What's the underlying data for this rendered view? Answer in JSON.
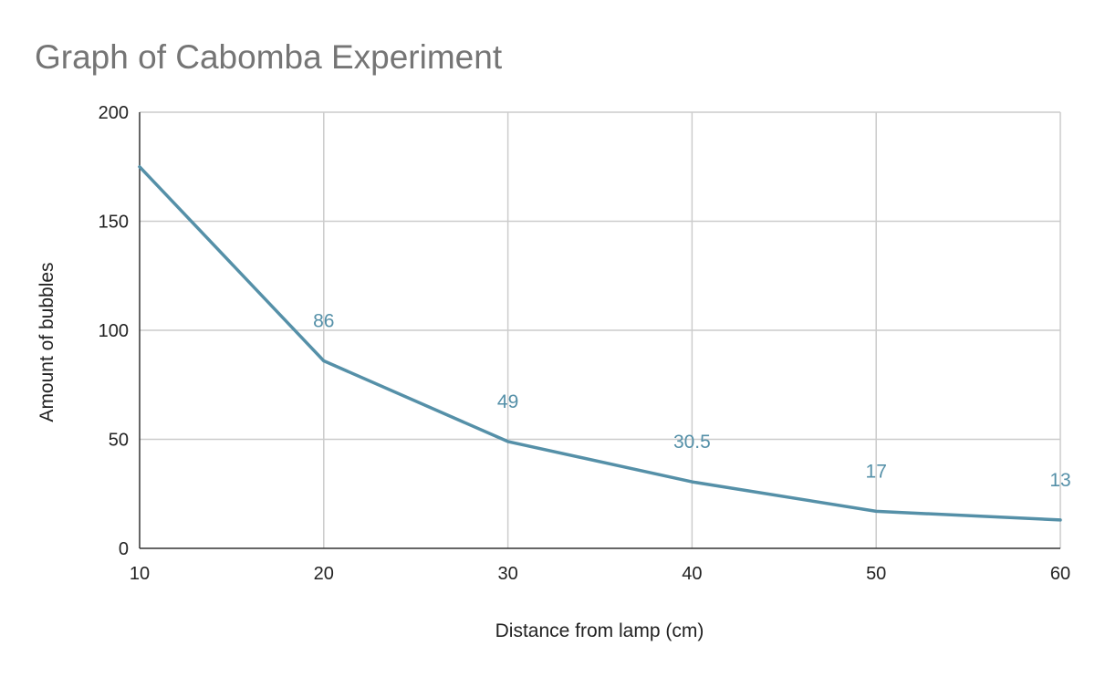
{
  "chart_data": {
    "type": "line",
    "title": "Graph of Cabomba Experiment",
    "xlabel": "Distance from lamp (cm)",
    "ylabel": "Amount of bubbles",
    "x": [
      10,
      20,
      30,
      40,
      50,
      60
    ],
    "xlim": [
      10,
      60
    ],
    "ylim": [
      0,
      200
    ],
    "x_ticks": [
      10,
      20,
      30,
      40,
      50,
      60
    ],
    "y_ticks": [
      0,
      50,
      100,
      150,
      200
    ],
    "grid": true,
    "legend": "none",
    "series": [
      {
        "values": [
          175,
          86,
          49,
          30.5,
          17,
          13
        ],
        "data_labels": [
          "",
          "86",
          "49",
          "30.5",
          "17",
          "13"
        ],
        "color": "#5590a8"
      }
    ]
  }
}
